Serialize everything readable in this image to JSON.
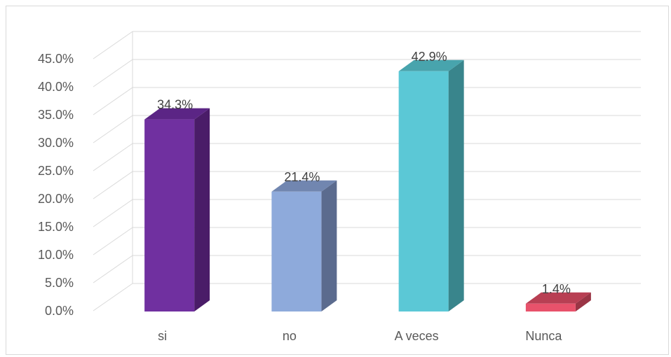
{
  "chart_data": {
    "type": "bar",
    "style": "3d-column",
    "title": "",
    "xlabel": "",
    "ylabel": "",
    "categories": [
      "si",
      "no",
      "A veces",
      "Nunca"
    ],
    "values": [
      34.3,
      21.4,
      42.9,
      1.4
    ],
    "data_labels": [
      "34.3%",
      "21.4%",
      "42.9%",
      "1.4%"
    ],
    "colors": [
      {
        "front": "#7030a0",
        "side": "#4a1c68",
        "top": "#5b2585"
      },
      {
        "front": "#8eaadb",
        "side": "#5b6b8e",
        "top": "#7186b0"
      },
      {
        "front": "#5bc8d6",
        "side": "#39858c",
        "top": "#48a4ad"
      },
      {
        "front": "#e8526b",
        "side": "#9a3545",
        "top": "#b83f53"
      }
    ],
    "ylim": [
      0,
      45
    ],
    "ytick_values": [
      0,
      5,
      10,
      15,
      20,
      25,
      30,
      35,
      40,
      45
    ],
    "ytick_labels": [
      "0.0%",
      "5.0%",
      "10.0%",
      "15.0%",
      "20.0%",
      "25.0%",
      "30.0%",
      "35.0%",
      "40.0%",
      "45.0%"
    ],
    "gridlines": true,
    "legend": "none"
  }
}
